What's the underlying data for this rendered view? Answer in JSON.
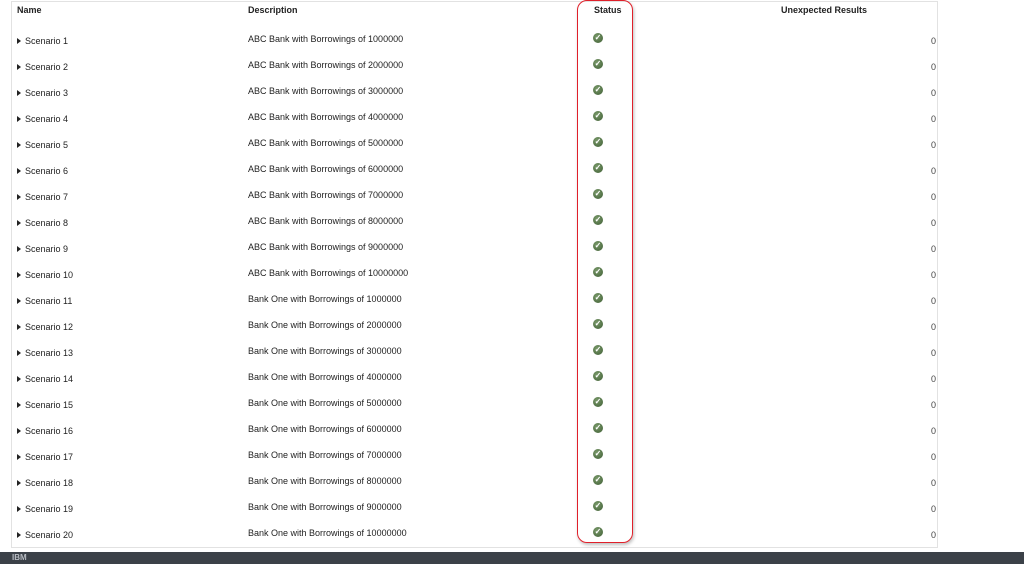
{
  "table": {
    "headers": {
      "name": "Name",
      "description": "Description",
      "status": "Status",
      "unexpected": "Unexpected Results"
    },
    "rows": [
      {
        "name": "Scenario 1",
        "description": "ABC Bank with Borrowings of 1000000",
        "status": "passed",
        "unexpected": "0"
      },
      {
        "name": "Scenario 2",
        "description": "ABC Bank with Borrowings of 2000000",
        "status": "passed",
        "unexpected": "0"
      },
      {
        "name": "Scenario 3",
        "description": "ABC Bank with Borrowings of 3000000",
        "status": "passed",
        "unexpected": "0"
      },
      {
        "name": "Scenario 4",
        "description": "ABC Bank with Borrowings of 4000000",
        "status": "passed",
        "unexpected": "0"
      },
      {
        "name": "Scenario 5",
        "description": "ABC Bank with Borrowings of 5000000",
        "status": "passed",
        "unexpected": "0"
      },
      {
        "name": "Scenario 6",
        "description": "ABC Bank with Borrowings of 6000000",
        "status": "passed",
        "unexpected": "0"
      },
      {
        "name": "Scenario 7",
        "description": "ABC Bank with Borrowings of 7000000",
        "status": "passed",
        "unexpected": "0"
      },
      {
        "name": "Scenario 8",
        "description": "ABC Bank with Borrowings of 8000000",
        "status": "passed",
        "unexpected": "0"
      },
      {
        "name": "Scenario 9",
        "description": "ABC Bank with Borrowings of 9000000",
        "status": "passed",
        "unexpected": "0"
      },
      {
        "name": "Scenario 10",
        "description": "ABC Bank with Borrowings of 10000000",
        "status": "passed",
        "unexpected": "0"
      },
      {
        "name": "Scenario 11",
        "description": "Bank One with Borrowings of 1000000",
        "status": "passed",
        "unexpected": "0"
      },
      {
        "name": "Scenario 12",
        "description": "Bank One with Borrowings of 2000000",
        "status": "passed",
        "unexpected": "0"
      },
      {
        "name": "Scenario 13",
        "description": "Bank One with Borrowings of 3000000",
        "status": "passed",
        "unexpected": "0"
      },
      {
        "name": "Scenario 14",
        "description": "Bank One with Borrowings of 4000000",
        "status": "passed",
        "unexpected": "0"
      },
      {
        "name": "Scenario 15",
        "description": "Bank One with Borrowings of 5000000",
        "status": "passed",
        "unexpected": "0"
      },
      {
        "name": "Scenario 16",
        "description": "Bank One with Borrowings of 6000000",
        "status": "passed",
        "unexpected": "0"
      },
      {
        "name": "Scenario 17",
        "description": "Bank One with Borrowings of 7000000",
        "status": "passed",
        "unexpected": "0"
      },
      {
        "name": "Scenario 18",
        "description": "Bank One with Borrowings of 8000000",
        "status": "passed",
        "unexpected": "0"
      },
      {
        "name": "Scenario 19",
        "description": "Bank One with Borrowings of 9000000",
        "status": "passed",
        "unexpected": "0"
      },
      {
        "name": "Scenario 20",
        "description": "Bank One with Borrowings of 10000000",
        "status": "passed",
        "unexpected": "0"
      }
    ]
  },
  "colors": {
    "status_pass": "#4a6b3e",
    "highlight": "#e0202a",
    "footer": "#3b4148"
  },
  "footer": {
    "logo": "IBM"
  }
}
